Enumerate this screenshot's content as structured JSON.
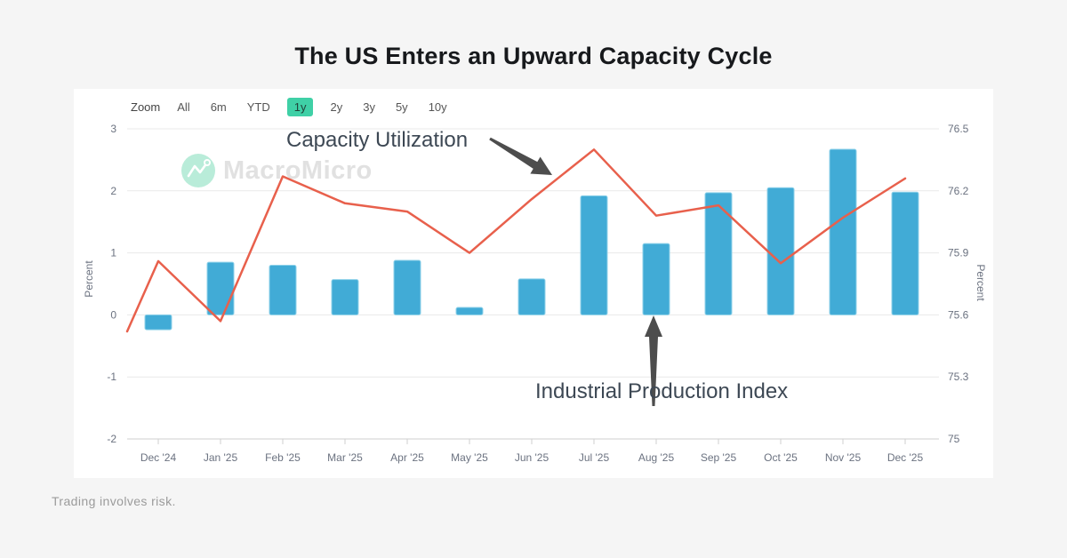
{
  "page": {
    "title": "The US Enters an Upward Capacity Cycle",
    "disclaimer": "Trading involves risk.",
    "watermark": "MacroMicro"
  },
  "toolbar": {
    "zoom_label": "Zoom",
    "ranges": [
      {
        "label": "All",
        "active": false
      },
      {
        "label": "6m",
        "active": false
      },
      {
        "label": "YTD",
        "active": false
      },
      {
        "label": "1y",
        "active": true
      },
      {
        "label": "2y",
        "active": false
      },
      {
        "label": "3y",
        "active": false
      },
      {
        "label": "5y",
        "active": false
      },
      {
        "label": "10y",
        "active": false
      }
    ],
    "active_bg": "#3fd0a6"
  },
  "annotations": {
    "line_label": "Capacity Utilization",
    "bar_label": "Industrial Production Index"
  },
  "chart_data": {
    "type": "bar+line combo",
    "categories": [
      "Dec '24",
      "Jan '25",
      "Feb '25",
      "Mar '25",
      "Apr '25",
      "May '25",
      "Jun '25",
      "Jul '25",
      "Aug '25",
      "Sep '25",
      "Oct '25",
      "Nov '25",
      "Dec '25"
    ],
    "series": [
      {
        "name": "Industrial Production Index",
        "type": "bar",
        "axis": "left",
        "color": "#41abd6",
        "values": [
          -0.24,
          0.85,
          0.8,
          0.57,
          0.88,
          0.12,
          0.58,
          1.92,
          1.15,
          1.97,
          2.05,
          2.67,
          1.98
        ]
      },
      {
        "name": "Capacity Utilization",
        "type": "line",
        "axis": "right",
        "color": "#e8604c",
        "lead_in_value": 75.52,
        "values": [
          75.86,
          75.57,
          76.27,
          76.14,
          76.1,
          75.9,
          76.16,
          76.4,
          76.08,
          76.13,
          75.85,
          76.07,
          76.26
        ]
      }
    ],
    "y_left": {
      "label": "Percent",
      "ticks": [
        "3",
        "2",
        "1",
        "0",
        "-1",
        "-2"
      ],
      "min": -2,
      "max": 3
    },
    "y_right": {
      "label": "Percent",
      "ticks": [
        "76.5",
        "76.2",
        "75.9",
        "75.6",
        "75.3",
        "75"
      ],
      "min": 75,
      "max": 76.5
    },
    "grid": true,
    "legend": "none"
  }
}
